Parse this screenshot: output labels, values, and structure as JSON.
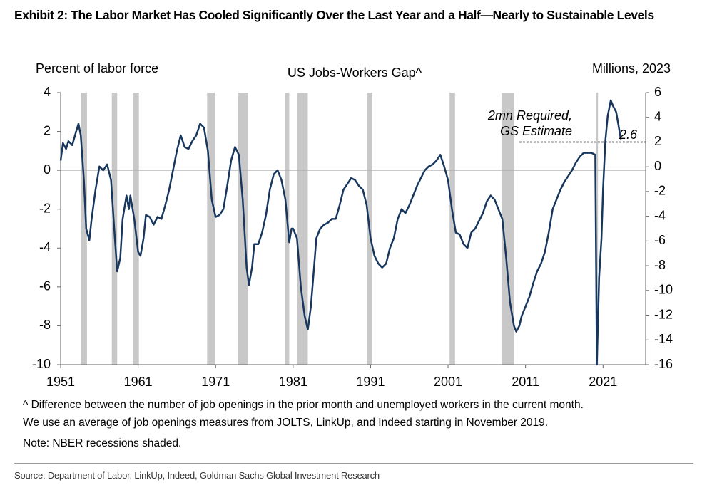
{
  "header": {
    "title": "Exhibit 2: The Labor Market Has Cooled Significantly Over the Last Year and a Half—Nearly to Sustainable Levels"
  },
  "chart_data": {
    "type": "line",
    "title": "US Jobs-Workers Gap^",
    "y_label": "Percent of labor force",
    "y2_label": "Millions, 2023",
    "color": "#17375e",
    "xlim": [
      1951,
      2026.5
    ],
    "xticks": [
      1951,
      1961,
      1971,
      1981,
      1991,
      2001,
      2011,
      2021
    ],
    "ylim": [
      -10,
      4
    ],
    "yticks": [
      4,
      2,
      0,
      -2,
      -4,
      -6,
      -8,
      -10
    ],
    "y2lim": [
      -16,
      6
    ],
    "y2ticks": [
      6,
      4,
      2,
      0,
      -2,
      -4,
      -6,
      -8,
      -10,
      -12,
      -14,
      -16
    ],
    "recessions": [
      [
        1953.6,
        1954.4
      ],
      [
        1957.6,
        1958.3
      ],
      [
        1960.3,
        1961.1
      ],
      [
        1969.9,
        1970.9
      ],
      [
        1973.9,
        1975.2
      ],
      [
        1980.0,
        1980.5
      ],
      [
        1981.5,
        1982.9
      ],
      [
        1990.5,
        1991.2
      ],
      [
        2001.2,
        2001.9
      ],
      [
        2007.9,
        2009.5
      ],
      [
        2020.1,
        2020.35
      ]
    ],
    "x": [
      1951.0,
      1951.3,
      1951.7,
      1952.0,
      1952.5,
      1953.0,
      1953.3,
      1953.6,
      1954.0,
      1954.3,
      1954.7,
      1955.0,
      1955.5,
      1956.0,
      1956.5,
      1957.0,
      1957.5,
      1958.0,
      1958.3,
      1958.7,
      1959.0,
      1959.5,
      1959.8,
      1960.0,
      1960.5,
      1961.0,
      1961.3,
      1961.7,
      1962.0,
      1962.5,
      1963.0,
      1963.5,
      1964.0,
      1964.5,
      1965.0,
      1965.5,
      1966.0,
      1966.5,
      1967.0,
      1967.5,
      1968.0,
      1968.5,
      1969.0,
      1969.5,
      1970.0,
      1970.5,
      1971.0,
      1971.5,
      1972.0,
      1972.5,
      1973.0,
      1973.5,
      1974.0,
      1974.5,
      1975.0,
      1975.3,
      1975.7,
      1976.0,
      1976.5,
      1977.0,
      1977.5,
      1978.0,
      1978.5,
      1979.0,
      1979.5,
      1980.0,
      1980.5,
      1980.8,
      1981.0,
      1981.5,
      1982.0,
      1982.5,
      1982.9,
      1983.3,
      1983.7,
      1984.0,
      1984.5,
      1985.0,
      1985.5,
      1986.0,
      1986.5,
      1987.0,
      1987.5,
      1988.0,
      1988.5,
      1989.0,
      1989.5,
      1990.0,
      1990.5,
      1991.0,
      1991.5,
      1992.0,
      1992.5,
      1993.0,
      1993.5,
      1994.0,
      1994.5,
      1995.0,
      1995.5,
      1996.0,
      1996.5,
      1997.0,
      1997.5,
      1998.0,
      1998.5,
      1999.0,
      1999.5,
      2000.0,
      2000.5,
      2001.0,
      2001.5,
      2002.0,
      2002.5,
      2003.0,
      2003.5,
      2004.0,
      2004.5,
      2005.0,
      2005.5,
      2006.0,
      2006.5,
      2007.0,
      2007.5,
      2008.0,
      2008.5,
      2009.0,
      2009.5,
      2009.8,
      2010.2,
      2010.5,
      2011.0,
      2011.5,
      2012.0,
      2012.5,
      2013.0,
      2013.5,
      2014.0,
      2014.5,
      2015.0,
      2015.5,
      2016.0,
      2016.5,
      2017.0,
      2017.5,
      2018.0,
      2018.5,
      2019.0,
      2019.5,
      2020.0,
      2020.2,
      2020.5,
      2020.8,
      2021.0,
      2021.3,
      2021.6,
      2022.0,
      2022.3,
      2022.7,
      2023.0,
      2023.3
    ],
    "values": [
      0.5,
      1.4,
      1.1,
      1.5,
      1.3,
      2.0,
      2.4,
      1.8,
      -0.5,
      -3.0,
      -3.6,
      -2.5,
      -1.0,
      0.2,
      0.0,
      0.3,
      -0.5,
      -3.5,
      -5.2,
      -4.5,
      -2.5,
      -1.3,
      -2.0,
      -1.3,
      -2.5,
      -4.2,
      -4.4,
      -3.5,
      -2.3,
      -2.4,
      -2.8,
      -2.4,
      -2.5,
      -1.8,
      -1.0,
      0.0,
      1.0,
      1.8,
      1.2,
      1.1,
      1.5,
      1.8,
      2.4,
      2.2,
      1.0,
      -1.5,
      -2.4,
      -2.3,
      -2.0,
      -0.8,
      0.5,
      1.2,
      0.8,
      -1.5,
      -5.0,
      -5.9,
      -5.0,
      -3.8,
      -3.8,
      -3.2,
      -2.3,
      -1.0,
      -0.2,
      0.0,
      -0.5,
      -1.5,
      -3.7,
      -3.0,
      -3.0,
      -3.5,
      -6.0,
      -7.5,
      -8.2,
      -7.0,
      -5.0,
      -3.5,
      -3.0,
      -2.8,
      -2.7,
      -2.5,
      -2.5,
      -1.8,
      -1.0,
      -0.7,
      -0.4,
      -0.5,
      -0.8,
      -1.0,
      -1.8,
      -3.5,
      -4.4,
      -4.8,
      -5.0,
      -4.8,
      -4.0,
      -3.5,
      -2.5,
      -2.0,
      -2.2,
      -1.8,
      -1.3,
      -0.8,
      -0.4,
      0.0,
      0.2,
      0.3,
      0.5,
      0.8,
      0.2,
      -0.5,
      -2.0,
      -3.2,
      -3.3,
      -3.8,
      -4.0,
      -3.2,
      -3.0,
      -2.6,
      -2.2,
      -1.6,
      -1.3,
      -1.5,
      -2.0,
      -2.5,
      -4.5,
      -6.8,
      -8.0,
      -8.3,
      -8.0,
      -7.5,
      -7.0,
      -6.5,
      -5.8,
      -5.2,
      -4.8,
      -4.2,
      -3.2,
      -2.0,
      -1.5,
      -1.0,
      -0.6,
      -0.3,
      0.0,
      0.4,
      0.7,
      0.9,
      0.9,
      0.9,
      0.8,
      -10.0,
      -5.5,
      -3.5,
      -1.0,
      1.5,
      2.8,
      3.6,
      3.3,
      3.0,
      2.3,
      1.6
    ],
    "threshold": {
      "value": 2,
      "axis": "y2",
      "x_start": 2010.2,
      "lines": [
        "2mn Required,",
        "GS Estimate"
      ]
    },
    "end_label": "2.6"
  },
  "notes": [
    "^ Difference between the number of job openings in the prior month and unemployed workers in the current month.",
    "We use an average of job openings measures from JOLTS, LinkUp, and Indeed starting in November 2019.",
    "Note: NBER recessions shaded."
  ],
  "source": "Source: Department of Labor, LinkUp, Indeed, Goldman Sachs Global Investment Research"
}
